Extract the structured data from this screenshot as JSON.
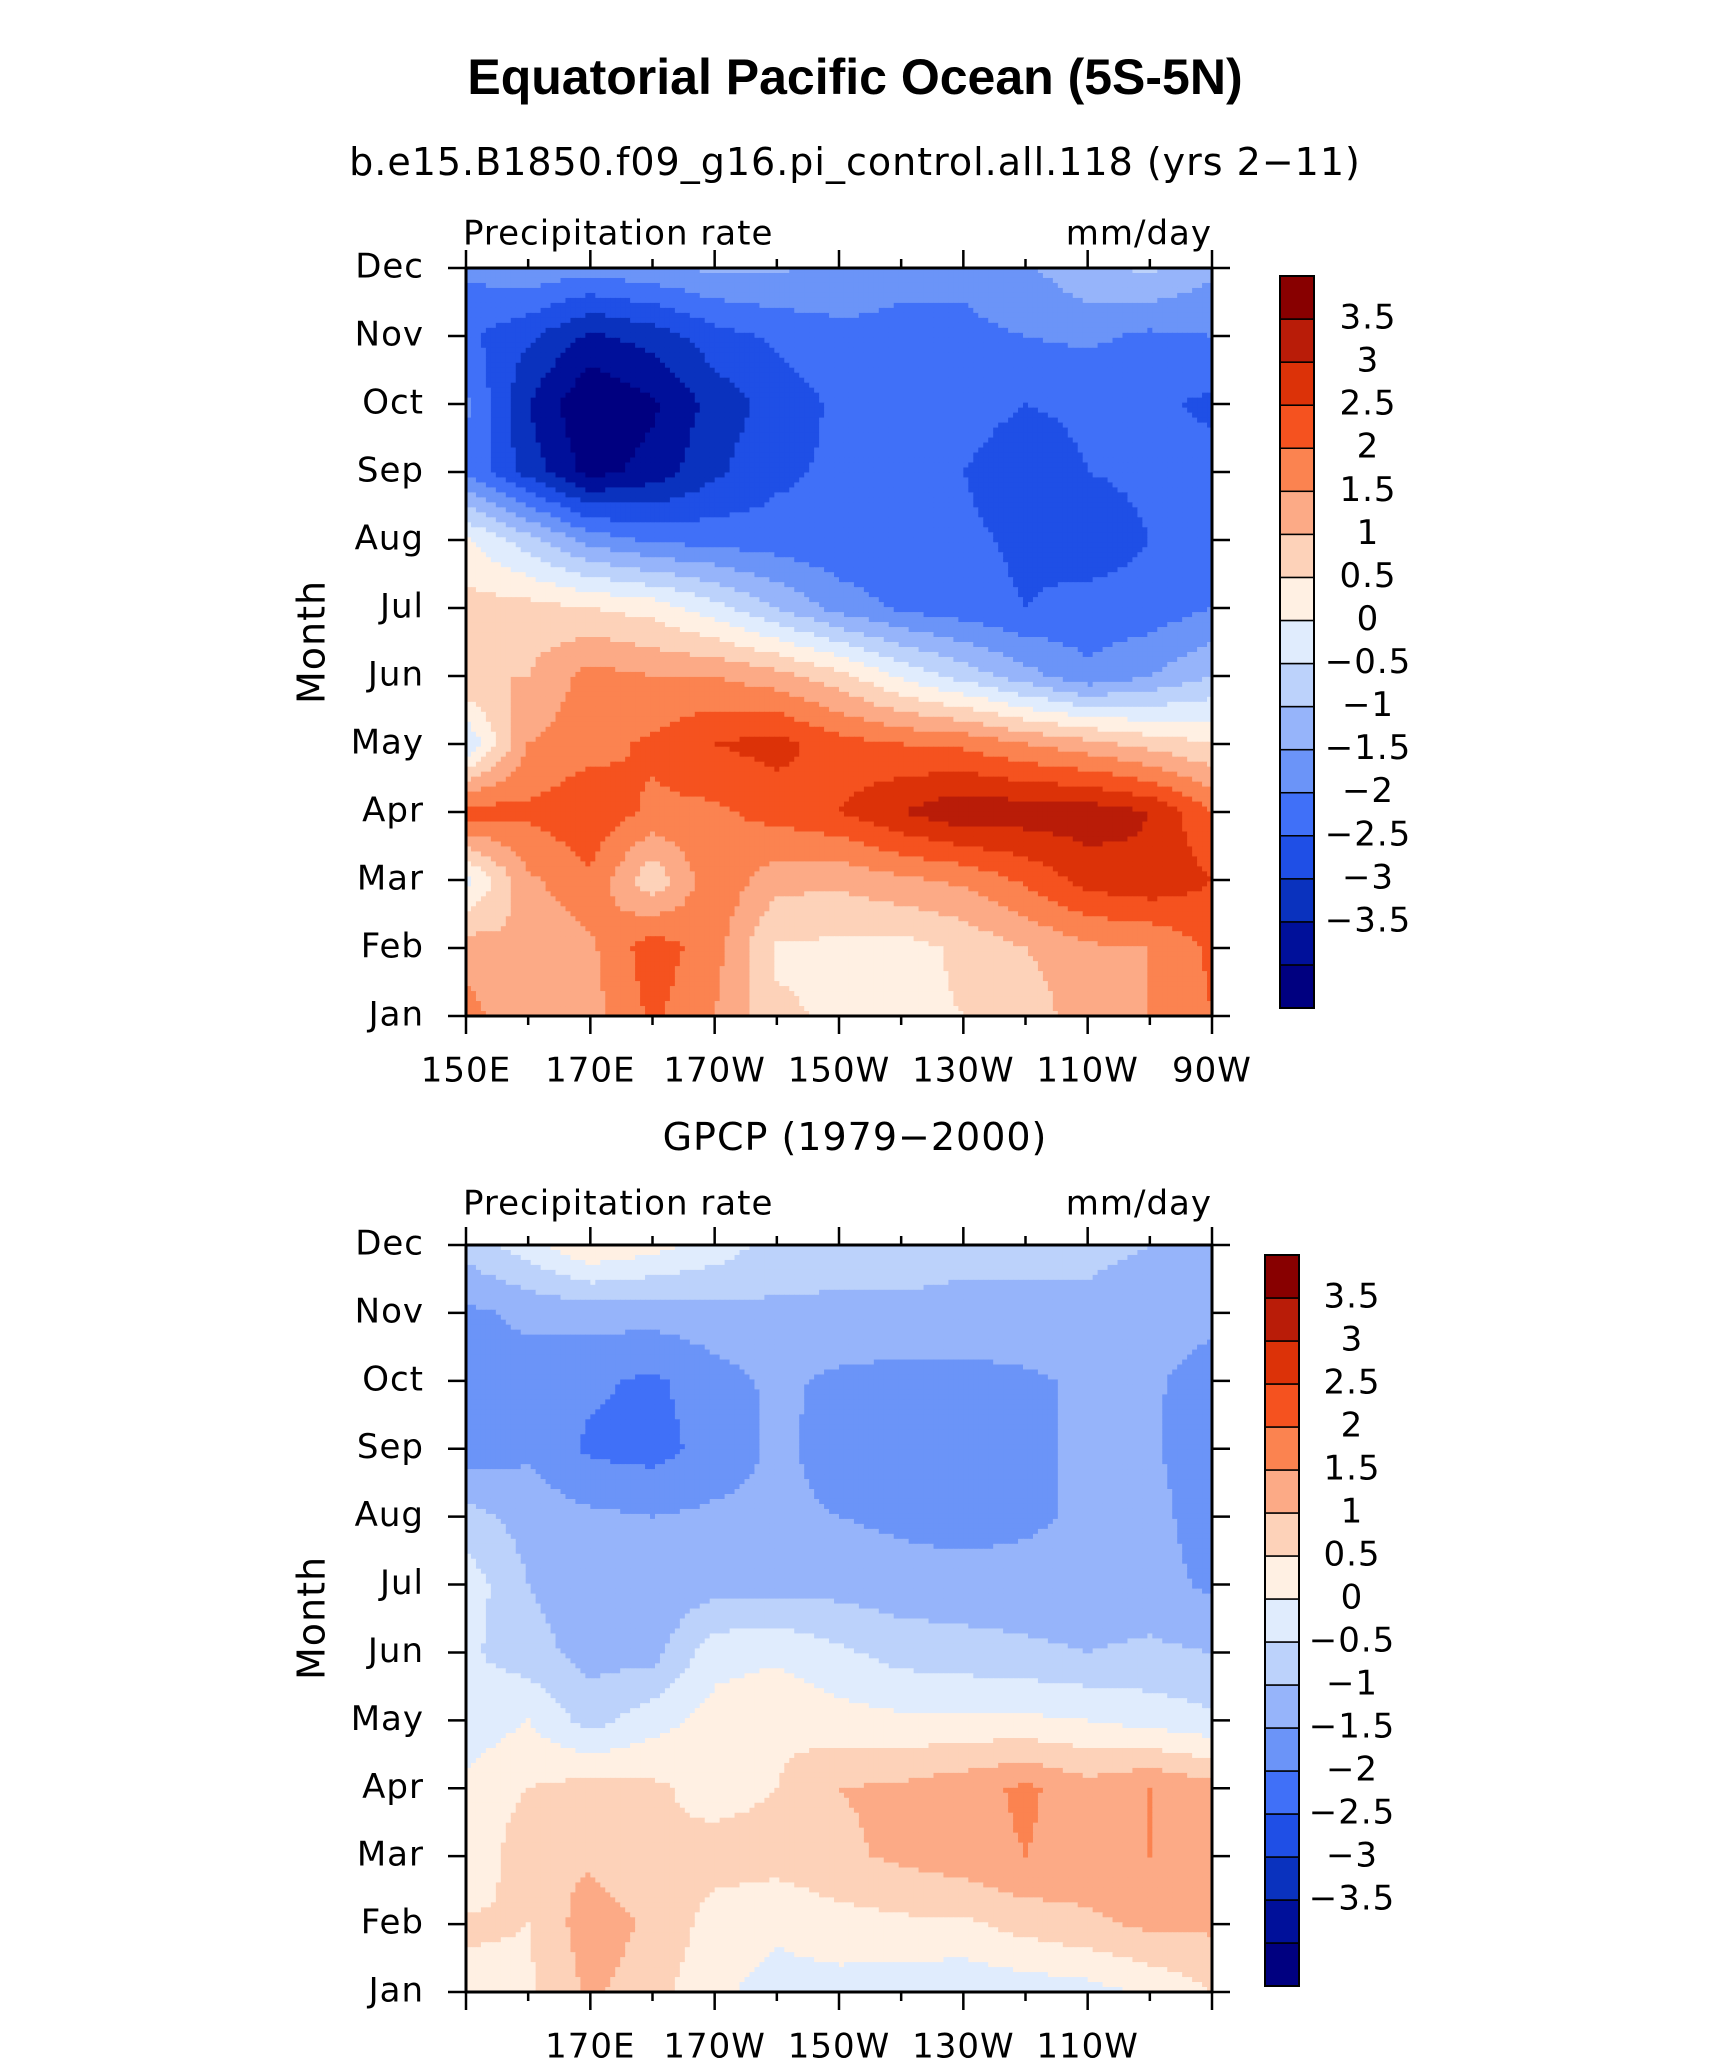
{
  "title": "Equatorial Pacific Ocean (5S-5N)",
  "colorbar": {
    "colors": [
      "#000080",
      "#00109a",
      "#0a32be",
      "#1f4fe6",
      "#4070f8",
      "#6b94f8",
      "#96b4fa",
      "#bcd2fb",
      "#e0ecfd",
      "#fff0e3",
      "#fdd2b9",
      "#fcaa86",
      "#fb8350",
      "#f5521f",
      "#dc3208",
      "#b91c08",
      "#880000"
    ],
    "labels": [
      "3.5",
      "3",
      "2.5",
      "2",
      "1.5",
      "1",
      "0.5",
      "0",
      "−0.5",
      "−1",
      "−1.5",
      "−2",
      "−2.5",
      "−3",
      "−3.5"
    ]
  },
  "chart_data": [
    {
      "type": "heatmap",
      "subtitle": "b.e15.B1850.f09_g16.pi_control.all.118 (yrs 2−11)",
      "left_label": "Precipitation rate",
      "right_label": "mm/day",
      "ylabel": "Month",
      "xlabel": "",
      "x_tick_labels": [
        "150E",
        "170E",
        "170W",
        "150W",
        "130W",
        "110W",
        "90W"
      ],
      "y_tick_labels": [
        "Jan",
        "Feb",
        "Mar",
        "Apr",
        "May",
        "Jun",
        "Jul",
        "Aug",
        "Sep",
        "Oct",
        "Nov",
        "Dec"
      ],
      "x": [
        150,
        160,
        170,
        180,
        190,
        200,
        210,
        220,
        230,
        240,
        250,
        260,
        270
      ],
      "y": [
        "Jan",
        "Feb",
        "Mar",
        "Apr",
        "May",
        "Jun",
        "Jul",
        "Aug",
        "Sep",
        "Oct",
        "Nov",
        "Dec"
      ],
      "z": [
        [
          2.2,
          1.6,
          1.8,
          2.6,
          2.0,
          1.1,
          0.9,
          0.9,
          1.0,
          1.1,
          1.9,
          2.0,
          2.5
        ],
        [
          1.8,
          1.5,
          1.9,
          2.8,
          2.2,
          0.9,
          0.9,
          0.8,
          1.1,
          1.5,
          1.9,
          2.0,
          2.6
        ],
        [
          0.3,
          1.9,
          2.4,
          1.1,
          2.4,
          1.7,
          1.6,
          1.9,
          2.1,
          2.6,
          3.2,
          3.4,
          3.0
        ],
        [
          2.8,
          2.6,
          2.9,
          2.4,
          2.4,
          2.7,
          3.0,
          3.5,
          3.9,
          3.8,
          3.8,
          3.5,
          2.5
        ],
        [
          0.0,
          2.0,
          2.3,
          2.6,
          3.0,
          3.2,
          2.7,
          2.5,
          2.4,
          2.0,
          1.7,
          1.3,
          1.0
        ],
        [
          1.5,
          1.5,
          2.2,
          2.0,
          2.0,
          1.7,
          1.2,
          0.4,
          -0.2,
          -0.8,
          -1.4,
          -1.0,
          -0.5
        ],
        [
          1.2,
          1.2,
          1.0,
          0.8,
          0.2,
          -0.5,
          -1.2,
          -1.6,
          -1.8,
          -2.0,
          -1.8,
          -1.8,
          -1.5
        ],
        [
          0.6,
          -0.3,
          -1.2,
          -1.6,
          -1.7,
          -1.8,
          -1.9,
          -1.9,
          -1.9,
          -2.1,
          -2.3,
          -2.0,
          -1.8
        ],
        [
          -1.6,
          -2.7,
          -3.7,
          -3.3,
          -2.6,
          -2.1,
          -1.9,
          -2.0,
          -2.0,
          -2.3,
          -2.0,
          -1.9,
          -1.8
        ],
        [
          -1.4,
          -3.0,
          -4.0,
          -3.6,
          -2.8,
          -2.3,
          -1.9,
          -1.9,
          -1.8,
          -2.0,
          -1.9,
          -1.9,
          -2.1
        ],
        [
          -1.9,
          -2.4,
          -3.1,
          -2.8,
          -2.2,
          -1.9,
          -1.6,
          -1.6,
          -1.6,
          -1.5,
          -1.4,
          -1.6,
          -1.5
        ],
        [
          -1.4,
          -1.1,
          -1.3,
          -1.1,
          -0.9,
          -0.9,
          -1.2,
          -1.4,
          -1.4,
          -1.1,
          -0.6,
          -0.4,
          -0.9
        ]
      ]
    },
    {
      "type": "heatmap",
      "subtitle": "GPCP (1979−2000)",
      "left_label": "Precipitation rate",
      "right_label": "mm/day",
      "ylabel": "Month",
      "xlabel": "",
      "x_tick_labels": [
        "170E",
        "170W",
        "150W",
        "130W",
        "110W"
      ],
      "y_tick_labels": [
        "Jan",
        "Feb",
        "Mar",
        "Apr",
        "May",
        "Jun",
        "Jul",
        "Aug",
        "Sep",
        "Oct",
        "Nov",
        "Dec"
      ],
      "x": [
        150,
        160,
        170,
        180,
        190,
        200,
        210,
        220,
        230,
        240,
        250,
        260,
        270
      ],
      "y": [
        "Jan",
        "Feb",
        "Mar",
        "Apr",
        "May",
        "Jun",
        "Jul",
        "Aug",
        "Sep",
        "Oct",
        "Nov",
        "Dec"
      ],
      "z": [
        [
          0.8,
          0.9,
          1.6,
          1.2,
          0.6,
          0.3,
          0.3,
          0.2,
          0.1,
          0.2,
          0.3,
          0.6,
          1.0
        ],
        [
          1.1,
          1.0,
          1.8,
          1.4,
          0.8,
          0.6,
          0.8,
          0.9,
          0.9,
          1.2,
          1.4,
          1.6,
          1.6
        ],
        [
          0.5,
          1.4,
          1.4,
          1.0,
          1.2,
          1.2,
          1.4,
          1.6,
          1.8,
          2.0,
          1.8,
          2.0,
          1.8
        ],
        [
          0.6,
          1.0,
          1.2,
          1.1,
          0.8,
          1.0,
          1.5,
          1.6,
          1.8,
          2.1,
          1.7,
          2.0,
          1.7
        ],
        [
          0.2,
          0.5,
          -0.2,
          0.3,
          0.7,
          0.9,
          0.7,
          0.6,
          0.6,
          0.6,
          0.5,
          0.3,
          0.1
        ],
        [
          0.1,
          -0.3,
          -0.7,
          -0.7,
          0.3,
          0.4,
          0.1,
          -0.2,
          -0.3,
          -0.4,
          -0.5,
          -0.4,
          -0.5
        ],
        [
          0.3,
          -0.5,
          -0.8,
          -0.9,
          -0.7,
          -0.7,
          -0.7,
          -0.8,
          -0.8,
          -0.8,
          -0.8,
          -0.8,
          -1.1
        ],
        [
          -0.3,
          -0.7,
          -0.9,
          -1.0,
          -0.9,
          -0.9,
          -1.0,
          -1.1,
          -1.2,
          -1.1,
          -0.9,
          -0.8,
          -1.3
        ],
        [
          -1.3,
          -1.1,
          -1.6,
          -1.7,
          -1.3,
          -0.9,
          -1.2,
          -1.3,
          -1.3,
          -1.1,
          -0.9,
          -0.9,
          -1.4
        ],
        [
          -1.1,
          -1.2,
          -1.4,
          -1.6,
          -1.2,
          -0.9,
          -1.1,
          -1.2,
          -1.2,
          -1.1,
          -0.9,
          -0.9,
          -1.3
        ],
        [
          -1.1,
          -0.9,
          -0.8,
          -0.8,
          -0.7,
          -0.6,
          -0.6,
          -0.6,
          -0.6,
          -0.6,
          -0.6,
          -0.7,
          -0.8
        ],
        [
          -0.3,
          0.3,
          1.0,
          0.7,
          0.3,
          -0.2,
          -0.3,
          -0.3,
          -0.4,
          -0.4,
          -0.4,
          -0.5,
          -0.6
        ]
      ]
    }
  ]
}
